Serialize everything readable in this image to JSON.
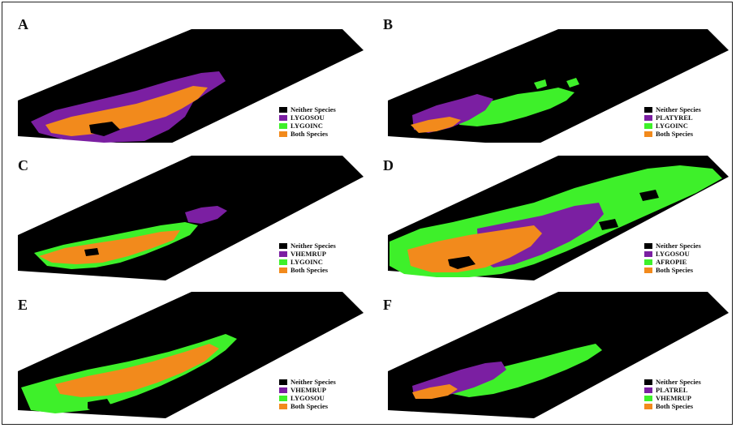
{
  "colors": {
    "neither": "#000000",
    "species1": "#7b1fa2",
    "species2": "#3ef02a",
    "both": "#f28a1c"
  },
  "panels": [
    {
      "letter": "A",
      "legend": [
        "Neither Species",
        "LYGOSOU",
        "LYGOINC",
        "Both Species"
      ]
    },
    {
      "letter": "B",
      "legend": [
        "Neither Species",
        "PLATYREL",
        "LYGOINC",
        "Both Species"
      ]
    },
    {
      "letter": "C",
      "legend": [
        "Neither Species",
        "VHEMRUP",
        "LYGOINC",
        "Both Species"
      ]
    },
    {
      "letter": "D",
      "legend": [
        "Neither Species",
        "LYGOSOU",
        "AFROPIE",
        "Both Species"
      ]
    },
    {
      "letter": "E",
      "legend": [
        "Neither Species",
        "VHEMRUP",
        "LYGOSOU",
        "Both Species"
      ]
    },
    {
      "letter": "F",
      "legend": [
        "Neither Species",
        "PLATREL",
        "VHEMRUP",
        "Both Species"
      ]
    }
  ]
}
